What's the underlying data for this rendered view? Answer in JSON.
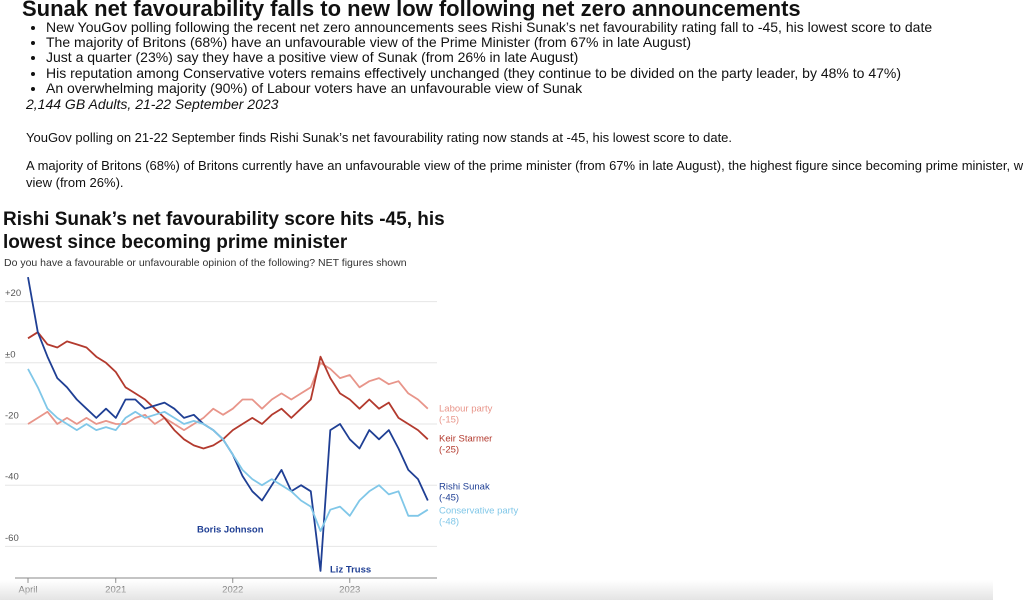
{
  "header": {
    "title": "Sunak net favourability falls to new low following net zero announcements"
  },
  "bullets": [
    "New YouGov polling following the recent net zero announcements sees Rishi Sunak’s net favourability rating fall to -45, his lowest score to date",
    "The majority of Britons (68%) have an unfavourable view of the Prime Minister (from 67% in late August)",
    "Just a quarter (23%) say they have a positive view of Sunak (from 26% in late August)",
    "His reputation among Conservative voters remains effectively unchanged (they continue to be divided on the party leader, by 48% to 47%)",
    "An overwhelming majority (90%) of Labour voters have an unfavourable view of Sunak"
  ],
  "sample_note": "2,144 GB Adults, 21-22 September 2023",
  "paragraphs": [
    [
      "YouGov polling on 21-22 September finds Rishi Sunak’s net favourability rating now stands at -45, his lowest score to date."
    ],
    [
      "A majority of Britons (68%) of Britons currently have an unfavourable view of the prime minister (from 67% in late August), the highest figure since becoming prime minister, w",
      "view (from 26%)."
    ]
  ],
  "chart_data": {
    "type": "line",
    "title": "Rishi Sunak’s net favourability score hits -45, his lowest since becoming prime minister",
    "subtitle": "Do you have a favourable or unfavourable opinion of the following? NET figures shown",
    "categories": [
      "April",
      null,
      null,
      null,
      null,
      null,
      null,
      null,
      null,
      "2021",
      null,
      null,
      null,
      null,
      null,
      null,
      null,
      null,
      null,
      null,
      null,
      "2022",
      null,
      null,
      null,
      null,
      null,
      null,
      null,
      null,
      null,
      null,
      null,
      "2023",
      null,
      null,
      null,
      null,
      null,
      null,
      null,
      null
    ],
    "ylim": [
      -70,
      30
    ],
    "yticks": [
      {
        "value": 20,
        "label": "+20"
      },
      {
        "value": 0,
        "label": "±0"
      },
      -20,
      -40,
      -60
    ],
    "grid": true,
    "series": [
      {
        "name": "Labour party",
        "end_label": "(-15)",
        "color": "#e8958a",
        "values": [
          -20,
          -18,
          -16,
          -20,
          -18,
          -20,
          -18,
          -20,
          -19,
          -20,
          -20,
          -18,
          -17,
          -20,
          -18,
          -20,
          -22,
          -20,
          -18,
          -15,
          -17,
          -15,
          -12,
          -12,
          -15,
          -12,
          -10,
          -12,
          -10,
          -8,
          0,
          -2,
          -5,
          -4,
          -8,
          -6,
          -5,
          -7,
          -6,
          -10,
          -12,
          -15
        ]
      },
      {
        "name": "Keir Starmer",
        "end_label": "(-25)",
        "color": "#b33a2e",
        "values": [
          8,
          10,
          6,
          5,
          7,
          6,
          5,
          2,
          0,
          -3,
          -8,
          -10,
          -12,
          -15,
          -18,
          -22,
          -25,
          -27,
          -28,
          -27,
          -25,
          -22,
          -20,
          -18,
          -20,
          -17,
          -15,
          -18,
          -15,
          -12,
          2,
          -5,
          -10,
          -12,
          -15,
          -12,
          -15,
          -13,
          -18,
          -20,
          -22,
          -25
        ]
      },
      {
        "name": "Rishi Sunak",
        "end_label": "(-45)",
        "color": "#1f3f94",
        "values": [
          28,
          10,
          2,
          -5,
          -8,
          -12,
          -15,
          -18,
          -15,
          -18,
          -12,
          -12,
          -15,
          -14,
          -13,
          -15,
          -18,
          -17,
          -20,
          -22,
          -25,
          -30,
          -37,
          -42,
          -45,
          -40,
          -35,
          -42,
          -40,
          -42,
          -68,
          -22,
          -20,
          -25,
          -28,
          -22,
          -25,
          -22,
          -28,
          -35,
          -38,
          -45
        ]
      },
      {
        "name": "Conservative party",
        "end_label": "(-48)",
        "color": "#80c7e8",
        "values": [
          -2,
          -8,
          -15,
          -18,
          -20,
          -22,
          -20,
          -22,
          -21,
          -22,
          -18,
          -16,
          -18,
          -17,
          -16,
          -18,
          -20,
          -19,
          -20,
          -22,
          -25,
          -30,
          -35,
          -38,
          -40,
          -38,
          -40,
          -42,
          -45,
          -47,
          -55,
          -48,
          -47,
          -50,
          -45,
          -42,
          -40,
          -43,
          -42,
          -50,
          -50,
          -48
        ]
      }
    ],
    "annotations": [
      {
        "text": "Boris Johnson",
        "color": "#1f3f94"
      },
      {
        "text": "Liz Truss",
        "color": "#1f3f94"
      }
    ]
  }
}
